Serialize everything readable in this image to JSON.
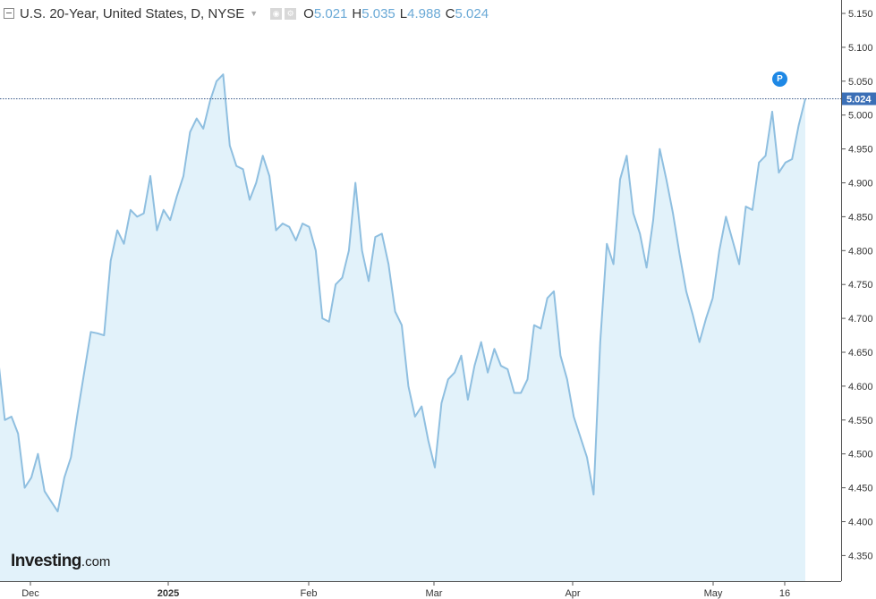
{
  "header": {
    "title": "U.S. 20-Year, United States, D, NYSE",
    "ohlc": [
      {
        "label": "O",
        "value": "5.021"
      },
      {
        "label": "H",
        "value": "5.035"
      },
      {
        "label": "L",
        "value": "4.988"
      },
      {
        "label": "C",
        "value": "5.024"
      }
    ]
  },
  "logo": {
    "brand": "Investing",
    "suffix": ".com"
  },
  "badge": {
    "label": "P"
  },
  "price_tag": "5.024",
  "colors": {
    "line": "#8fbfe0",
    "area": "#e2f2fa",
    "tag": "#3b6fb6",
    "badge": "#1e88e5"
  },
  "chart_data": {
    "type": "area",
    "title": "U.S. 20-Year, United States, D, NYSE",
    "x_tick_labels": [
      "Dec",
      "2025",
      "Feb",
      "Mar",
      "Apr",
      "May",
      "16"
    ],
    "y_ticks": [
      "5.150",
      "5.100",
      "5.050",
      "5.000",
      "4.950",
      "4.900",
      "4.850",
      "4.800",
      "4.750",
      "4.700",
      "4.650",
      "4.600",
      "4.550",
      "4.500",
      "4.450",
      "4.400",
      "4.350"
    ],
    "ylim": [
      4.32,
      5.17
    ],
    "last_value": 5.024,
    "grid": false,
    "series": [
      {
        "values": [
          4.64,
          4.55,
          4.555,
          4.53,
          4.45,
          4.465,
          4.5,
          4.445,
          4.43,
          4.415,
          4.465,
          4.495,
          4.56,
          4.62,
          4.68,
          4.678,
          4.675,
          4.785,
          4.83,
          4.81,
          4.86,
          4.85,
          4.855,
          4.91,
          4.83,
          4.86,
          4.845,
          4.88,
          4.91,
          4.975,
          4.995,
          4.98,
          5.02,
          5.05,
          5.06,
          4.955,
          4.925,
          4.92,
          4.875,
          4.9,
          4.94,
          4.91,
          4.83,
          4.84,
          4.835,
          4.815,
          4.84,
          4.835,
          4.8,
          4.7,
          4.695,
          4.75,
          4.76,
          4.8,
          4.9,
          4.8,
          4.755,
          4.82,
          4.825,
          4.78,
          4.71,
          4.69,
          4.6,
          4.555,
          4.57,
          4.52,
          4.48,
          4.575,
          4.61,
          4.62,
          4.645,
          4.58,
          4.63,
          4.665,
          4.62,
          4.655,
          4.63,
          4.625,
          4.59,
          4.59,
          4.61,
          4.69,
          4.685,
          4.73,
          4.74,
          4.645,
          4.61,
          4.555,
          4.525,
          4.495,
          4.44,
          4.665,
          4.81,
          4.78,
          4.905,
          4.94,
          4.855,
          4.825,
          4.775,
          4.845,
          4.95,
          4.905,
          4.855,
          4.795,
          4.74,
          4.705,
          4.665,
          4.7,
          4.73,
          4.8,
          4.85,
          4.815,
          4.78,
          4.865,
          4.86,
          4.93,
          4.94,
          5.005,
          4.915,
          4.93,
          4.935,
          4.985,
          5.024
        ]
      }
    ]
  }
}
